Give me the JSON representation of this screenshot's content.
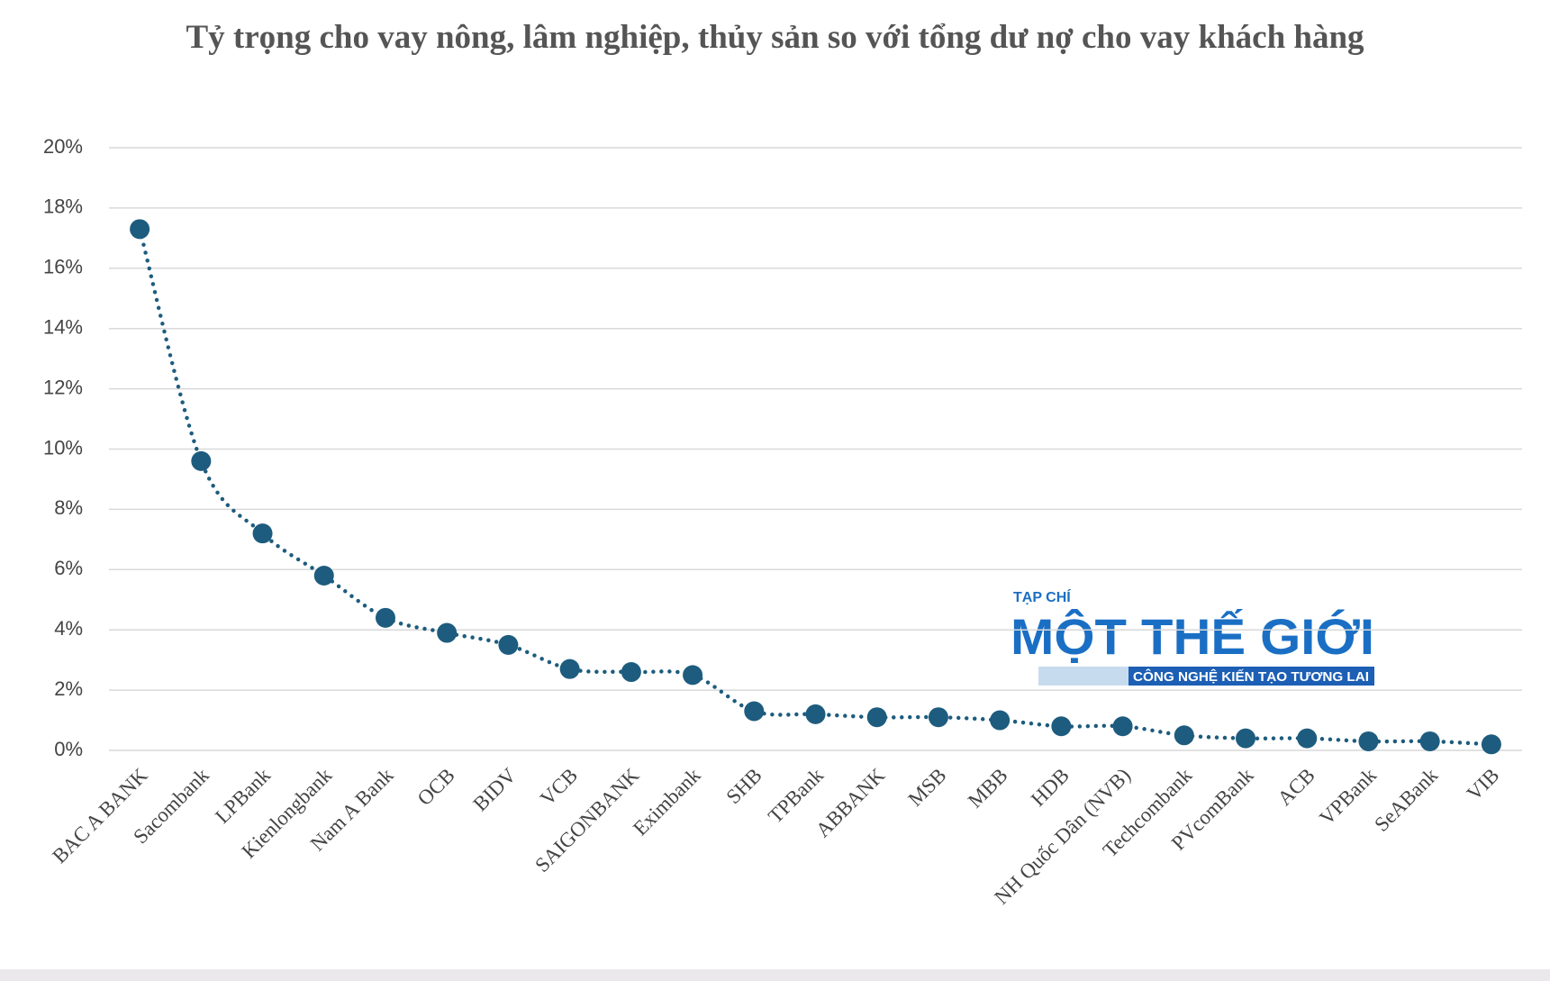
{
  "chart_data": {
    "type": "line",
    "title": "Tỷ trọng cho vay nông, lâm nghiệp, thủy sản so với tổng dư nợ cho vay khách hàng",
    "categories": [
      "BAC A BANK",
      "Sacombank",
      "LPBank",
      "Kienlongbank",
      "Nam A Bank",
      "OCB",
      "BIDV",
      "VCB",
      "SAIGONBANK",
      "Eximbank",
      "SHB",
      "TPBank",
      "ABBANK",
      "MSB",
      "MBB",
      "HDB",
      "NH Quốc Dân (NVB)",
      "Techcombank",
      "PVcomBank",
      "ACB",
      "VPBank",
      "SeABank",
      "VIB"
    ],
    "values": [
      17.3,
      9.6,
      7.2,
      5.8,
      4.4,
      3.9,
      3.5,
      2.7,
      2.6,
      2.5,
      1.3,
      1.2,
      1.1,
      1.1,
      1.0,
      0.8,
      0.8,
      0.5,
      0.4,
      0.4,
      0.3,
      0.3,
      0.2
    ],
    "color": "#1d5c7e",
    "ylim": [
      0,
      20
    ],
    "yticks": [
      {
        "value": 0,
        "label": "0%"
      },
      {
        "value": 2,
        "label": "2%"
      },
      {
        "value": 4,
        "label": "4%"
      },
      {
        "value": 6,
        "label": "6%"
      },
      {
        "value": 8,
        "label": "8%"
      },
      {
        "value": 10,
        "label": "10%"
      },
      {
        "value": 12,
        "label": "12%"
      },
      {
        "value": 14,
        "label": "14%"
      },
      {
        "value": 16,
        "label": "16%"
      },
      {
        "value": 18,
        "label": "18%"
      },
      {
        "value": 20,
        "label": "20%"
      }
    ],
    "grid": true
  },
  "watermark": {
    "kicker": "TẠP CHÍ",
    "name": "MỘT THẾ GIỚI",
    "tagline": "CÔNG NGHỆ KIẾN TẠO TƯƠNG LAI"
  }
}
